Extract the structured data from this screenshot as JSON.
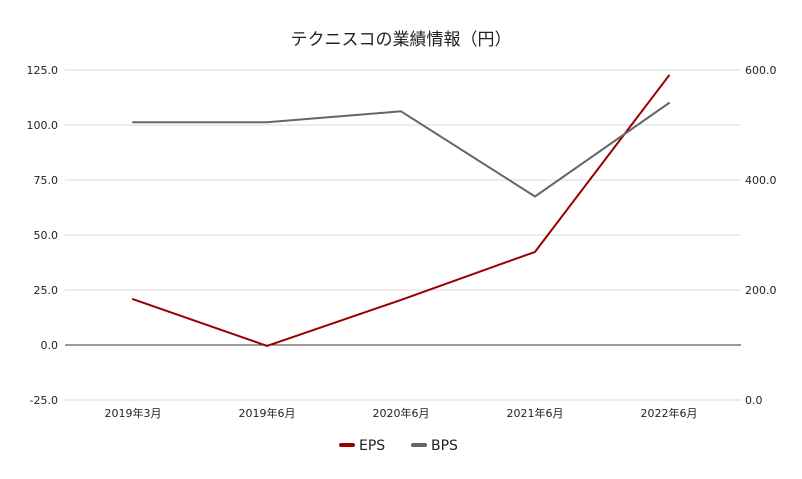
{
  "chart_data": {
    "type": "line",
    "title": "テクニスコの業績情報（円）",
    "categories": [
      "2019年3月",
      "2019年6月",
      "2020年6月",
      "2021年6月",
      "2022年6月"
    ],
    "series": [
      {
        "name": "EPS",
        "axis": "left",
        "color": "#990000",
        "values": [
          20.8,
          -0.4,
          20.5,
          42.3,
          122.5
        ]
      },
      {
        "name": "BPS",
        "axis": "right",
        "color": "#666666",
        "values": [
          505,
          505,
          525,
          370,
          540
        ]
      }
    ],
    "y_left": {
      "min": -25,
      "max": 125,
      "ticks": [
        "125.0",
        "100.0",
        "75.0",
        "50.0",
        "25.0",
        "0.0",
        "-25.0"
      ],
      "tick_values": [
        125,
        100,
        75,
        50,
        25,
        0,
        -25
      ]
    },
    "y_right": {
      "min": 0,
      "max": 600,
      "ticks": [
        "600.0",
        "400.0",
        "200.0",
        "0.0"
      ],
      "tick_values": [
        600,
        400,
        200,
        0
      ]
    },
    "grid": true,
    "legend_position": "bottom"
  }
}
